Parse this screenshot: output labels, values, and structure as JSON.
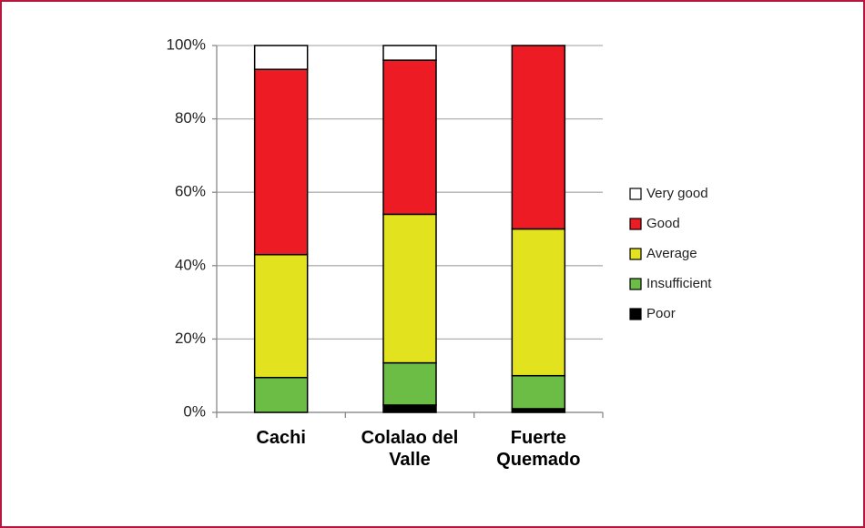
{
  "chart_data": {
    "type": "stacked_bar",
    "categories": [
      "Cachi",
      "Colalao del Valle",
      "Fuerte Quemado"
    ],
    "series": [
      {
        "name": "Poor",
        "color": "#000000",
        "values": [
          0,
          2,
          1
        ]
      },
      {
        "name": "Insufficient",
        "color": "#6bbd45",
        "values": [
          9.5,
          11.5,
          9
        ]
      },
      {
        "name": "Average",
        "color": "#e2e21f",
        "values": [
          33.5,
          40.5,
          40
        ]
      },
      {
        "name": "Good",
        "color": "#ed1c24",
        "values": [
          50.5,
          42,
          50
        ]
      },
      {
        "name": "Very good",
        "color": "#ffffff",
        "values": [
          6.5,
          4,
          0
        ]
      }
    ],
    "ylim": [
      0,
      100
    ],
    "yticks": [
      {
        "value": 0,
        "label": "0%"
      },
      {
        "value": 20,
        "label": "20%"
      },
      {
        "value": 40,
        "label": "40%"
      },
      {
        "value": 60,
        "label": "60%"
      },
      {
        "value": 80,
        "label": "80%"
      },
      {
        "value": 100,
        "label": "100%"
      }
    ],
    "grid": true,
    "legend": "right"
  }
}
